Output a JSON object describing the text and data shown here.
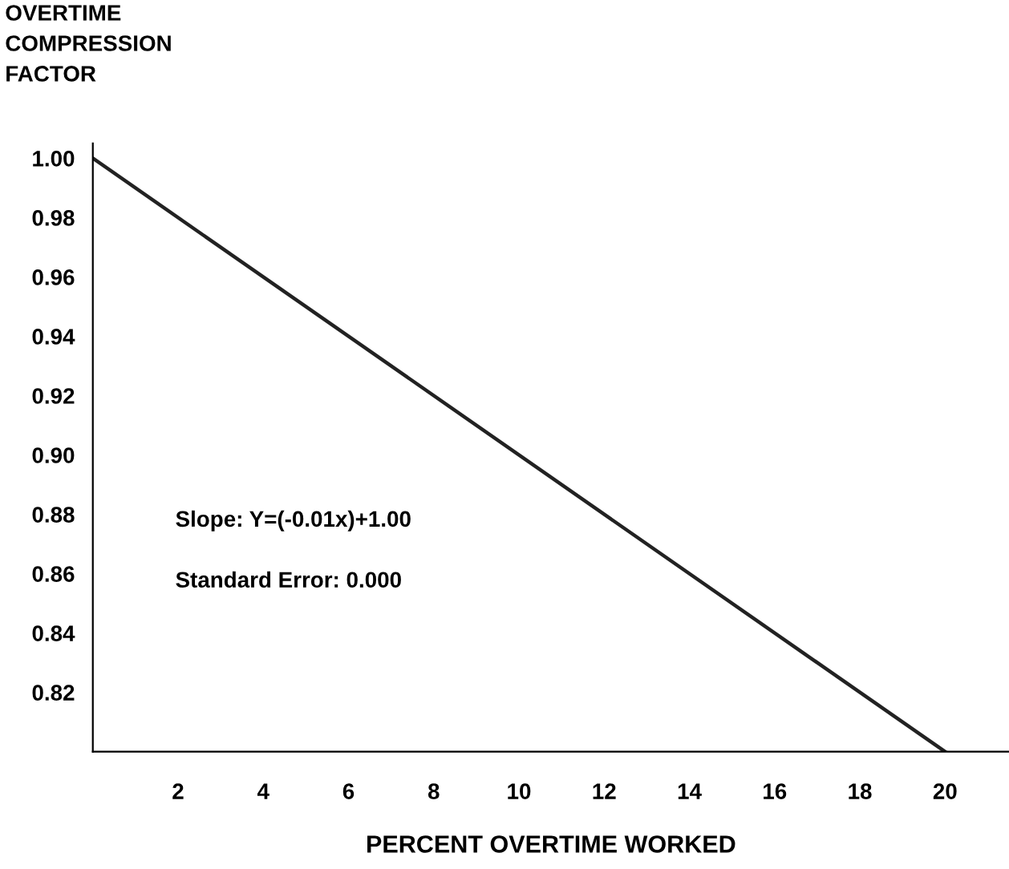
{
  "chart_data": {
    "type": "line",
    "ylabel": "OVERTIME\nCOMPRESSION\nFACTOR",
    "xlabel": "PERCENT OVERTIME WORKED",
    "x": [
      0,
      20
    ],
    "series": [
      {
        "color": "#222222",
        "values": [
          1.0,
          0.8
        ]
      }
    ],
    "xlim": [
      0,
      21.5
    ],
    "ylim": [
      0.8,
      1.005
    ],
    "xticks": [
      2,
      4,
      6,
      8,
      10,
      12,
      14,
      16,
      18,
      20
    ],
    "yticks": [
      {
        "value": 0.82,
        "label": "0.82"
      },
      {
        "value": 0.84,
        "label": "0.84"
      },
      {
        "value": 0.86,
        "label": "0.86"
      },
      {
        "value": 0.88,
        "label": "0.88"
      },
      {
        "value": 0.9,
        "label": "0.90"
      },
      {
        "value": 0.92,
        "label": "0.92"
      },
      {
        "value": 0.94,
        "label": "0.94"
      },
      {
        "value": 0.96,
        "label": "0.96"
      },
      {
        "value": 0.98,
        "label": "0.98"
      },
      {
        "value": 1.0,
        "label": "1.00"
      }
    ],
    "annotations": [
      "Slope: Y=(-0.01x)+1.00",
      "Standard Error: 0.000"
    ],
    "grid": false,
    "legend": false,
    "marker": "none",
    "line_style": "solid"
  }
}
